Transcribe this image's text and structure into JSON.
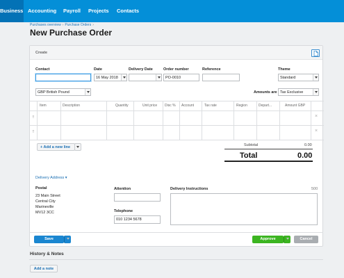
{
  "nav": {
    "items": [
      {
        "label": "Business",
        "active": true
      },
      {
        "label": "Accounting",
        "active": false
      },
      {
        "label": "Payroll",
        "active": false
      },
      {
        "label": "Projects",
        "active": false
      },
      {
        "label": "Contacts",
        "active": false
      }
    ]
  },
  "breadcrumb": {
    "items": [
      "Purchases overview",
      "Purchase Orders"
    ],
    "separator": "›"
  },
  "page_title": "New Purchase Order",
  "card": {
    "title": "Create",
    "icon": "document-icon"
  },
  "form": {
    "contact": {
      "label": "Contact",
      "value": ""
    },
    "date": {
      "label": "Date",
      "value": "16 May 2018"
    },
    "delivery_date": {
      "label": "Delivery Date",
      "value": ""
    },
    "order_number": {
      "label": "Order number",
      "value": "PO-0010"
    },
    "reference": {
      "label": "Reference",
      "value": ""
    },
    "theme": {
      "label": "Theme",
      "value": "Standard"
    },
    "currency": {
      "value": "GBP British Pound"
    },
    "amounts_are": {
      "label": "Amounts are",
      "value": "Tax Exclusive"
    }
  },
  "table": {
    "columns": [
      "Item",
      "Description",
      "Quantity",
      "Unit price",
      "Disc %",
      "Account",
      "Tax rate",
      "Region",
      "Depart...",
      "Amount GBP"
    ],
    "rows": 2,
    "handle_icon": "⠿",
    "delete_icon": "×"
  },
  "add_line": {
    "label": "+ Add a new line"
  },
  "totals": {
    "subtotal_label": "Subtotal",
    "subtotal_value": "0.00",
    "total_label": "Total",
    "total_value": "0.00"
  },
  "delivery": {
    "toggle_label": "Delivery Address ▾",
    "postal_label": "Postal",
    "address_lines": [
      "23 Main Street",
      "Central City",
      "Marineville",
      "MV12 3CC"
    ],
    "attention_label": "Attention",
    "attention_value": "",
    "telephone_label": "Telephone",
    "telephone_value": "010 1234 5678",
    "instructions_label": "Delivery Instructions",
    "instructions_count": "500",
    "instructions_value": ""
  },
  "actions": {
    "save": "Save",
    "approve": "Approve",
    "cancel": "Cancel"
  },
  "history": {
    "title": "History & Notes",
    "add_note": "Add a note"
  },
  "colors": {
    "nav": "#048fd8",
    "nav_active": "#0372b6",
    "primary": "#1a86d0",
    "approve": "#3cb521",
    "cancel": "#a9adb1"
  }
}
